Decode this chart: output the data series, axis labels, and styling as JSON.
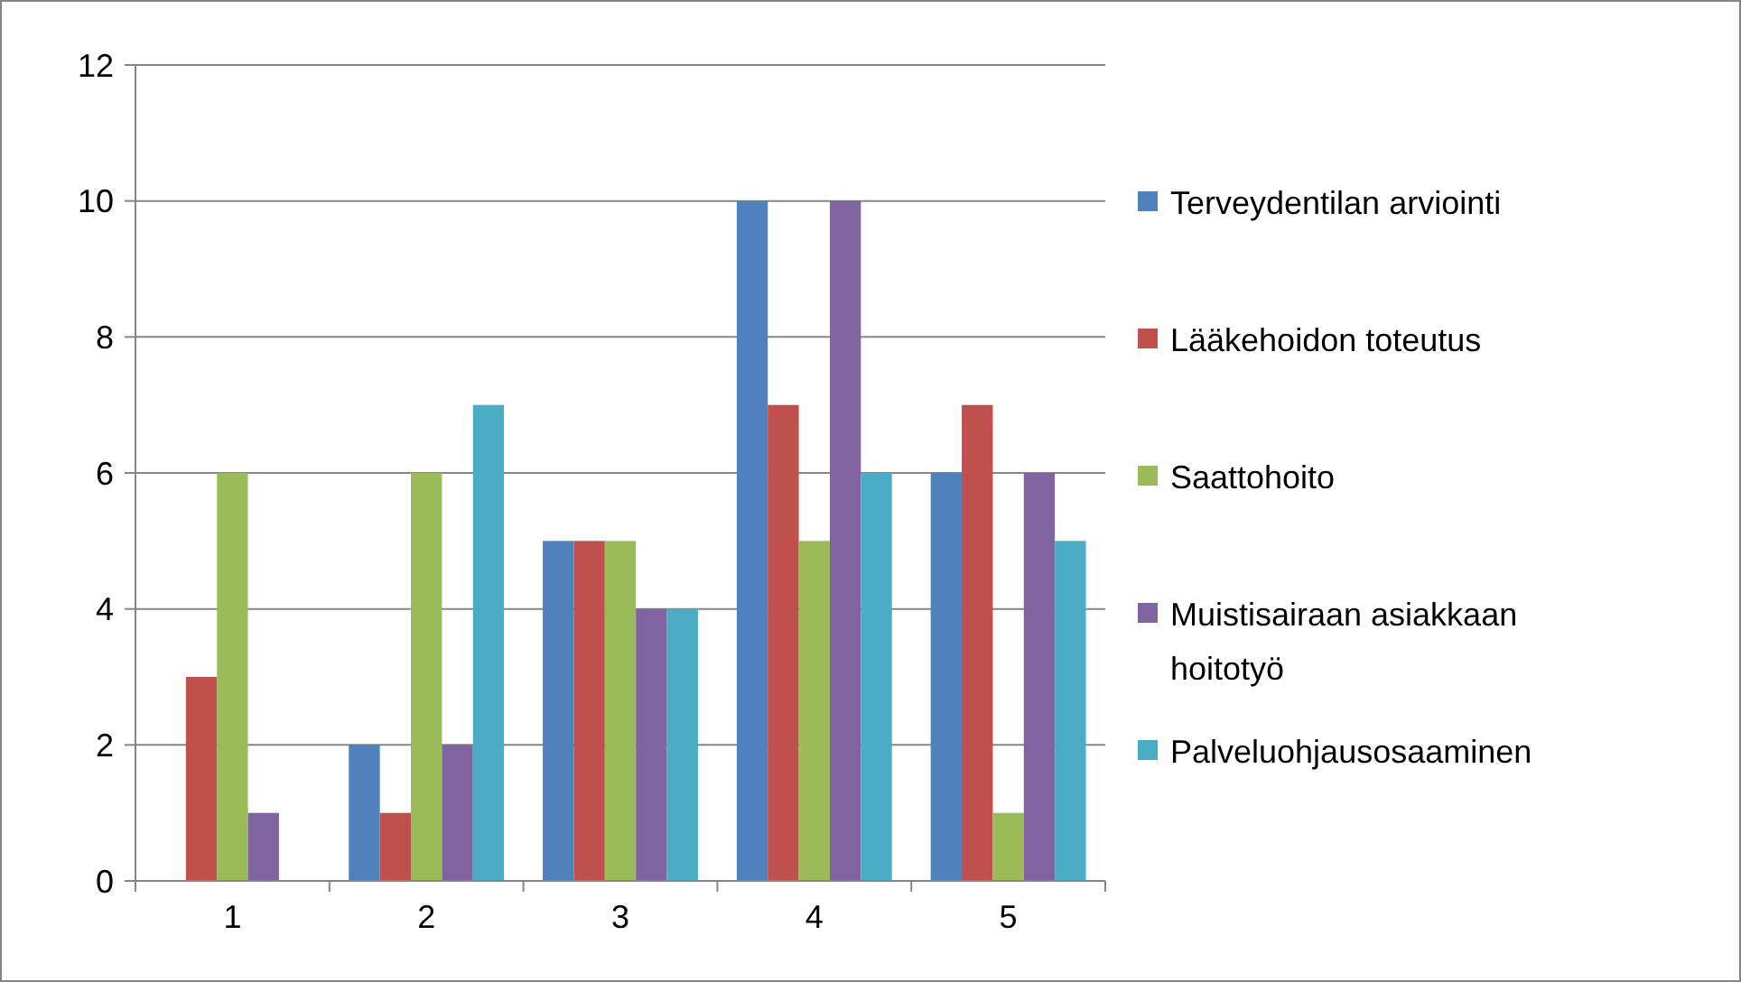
{
  "chart_data": {
    "type": "bar",
    "categories": [
      "1",
      "2",
      "3",
      "4",
      "5"
    ],
    "series": [
      {
        "name": "Terveydentilan arviointi",
        "color": "#4f81bd",
        "values": [
          0,
          2,
          5,
          10,
          6
        ]
      },
      {
        "name": "Lääkehoidon toteutus",
        "color": "#c0504d",
        "values": [
          3,
          1,
          5,
          7,
          7
        ]
      },
      {
        "name": "Saattohoito",
        "color": "#9bbb59",
        "values": [
          6,
          6,
          5,
          5,
          1
        ]
      },
      {
        "name": "Muistisairaan asiakkaan hoitotyö",
        "color": "#8064a2",
        "values": [
          1,
          2,
          4,
          10,
          6
        ]
      },
      {
        "name": "Palveluohjausosaaminen",
        "color": "#4bacc6",
        "values": [
          0,
          7,
          4,
          6,
          5
        ]
      }
    ],
    "ylim": [
      0,
      12
    ],
    "yticks": [
      0,
      2,
      4,
      6,
      8,
      10,
      12
    ],
    "grid": "y",
    "legend": "right"
  }
}
